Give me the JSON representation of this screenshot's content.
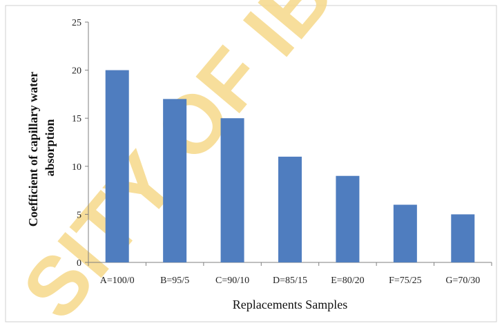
{
  "watermark": {
    "text": "SITY OF IBAD"
  },
  "chart_data": {
    "type": "bar",
    "categories": [
      "A=100/0",
      "B=95/5",
      "C=90/10",
      "D=85/15",
      "E=80/20",
      "F=75/25",
      "G=70/30"
    ],
    "values": [
      20,
      17,
      15,
      11,
      9,
      6,
      5
    ],
    "xlabel": "Replacements Samples",
    "ylabel_lines": [
      "Coefficient of capillary water",
      "absorption"
    ],
    "ylim": [
      0,
      25
    ],
    "yticks": [
      "0",
      "5",
      "10",
      "15",
      "20",
      "25"
    ],
    "grid": false,
    "colors": {
      "bar": "#4f7dbf",
      "axis": "#7f7f7f"
    }
  }
}
